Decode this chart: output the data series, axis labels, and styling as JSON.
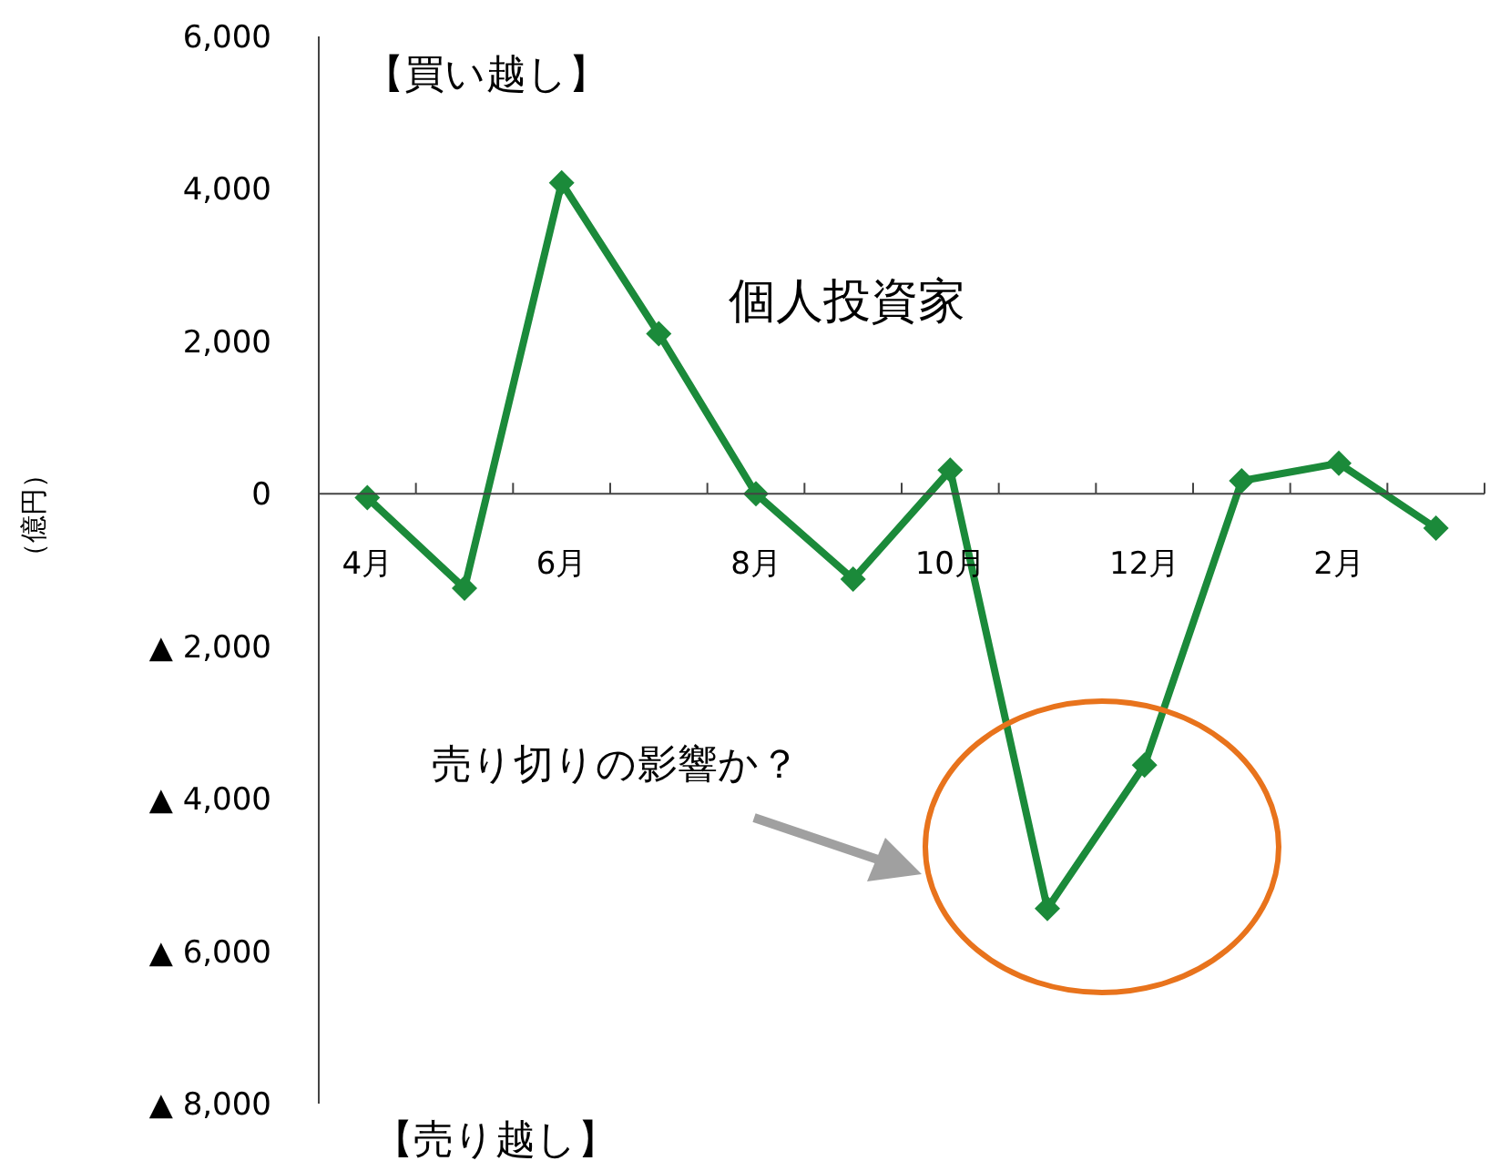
{
  "chart_data": {
    "type": "line",
    "ylabel": "（億円）",
    "categories": [
      "4月",
      null,
      "6月",
      null,
      "8月",
      null,
      "10月",
      null,
      "12月",
      null,
      "2月",
      null
    ],
    "series": [
      {
        "name": "個人投資家",
        "color": "#1b8a3a",
        "values": [
          -50,
          -1240,
          4080,
          2100,
          0,
          -1120,
          310,
          -5440,
          -3560,
          170,
          400,
          -450
        ]
      }
    ],
    "ylim": [
      -8000,
      6000
    ],
    "yticks": [
      {
        "value": -8000,
        "label": "▲ 8,000"
      },
      {
        "value": -6000,
        "label": "▲ 6,000"
      },
      {
        "value": -4000,
        "label": "▲ 4,000"
      },
      {
        "value": -2000,
        "label": "▲ 2,000"
      },
      {
        "value": 0,
        "label": "0"
      },
      {
        "value": 2000,
        "label": "2,000"
      },
      {
        "value": 4000,
        "label": "4,000"
      },
      {
        "value": 6000,
        "label": "6,000"
      }
    ],
    "annotations": [
      "【買い越し】",
      "【売り越し】",
      "売り切りの影響か？"
    ],
    "marker": "diamond",
    "grid": false
  }
}
